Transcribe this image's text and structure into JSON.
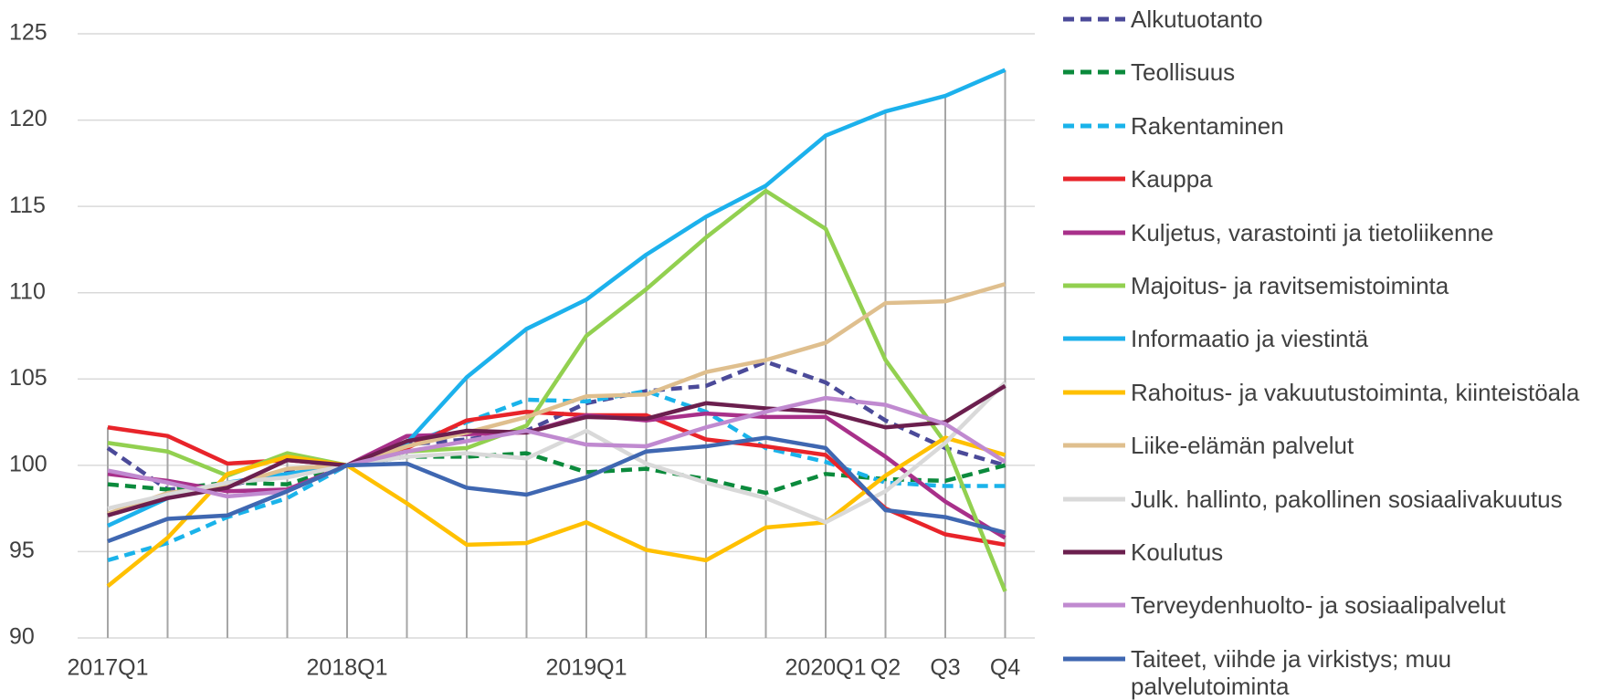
{
  "chart_data": {
    "type": "line",
    "categories": [
      "2017Q1",
      null,
      null,
      null,
      "2018Q1",
      null,
      null,
      null,
      "2019Q1",
      null,
      null,
      null,
      "2020Q1",
      "Q2",
      "Q3",
      "Q4"
    ],
    "ylim": [
      90,
      125
    ],
    "yticks": [
      90,
      95,
      100,
      105,
      110,
      115,
      120,
      125
    ],
    "grid": true,
    "drop_lines": true,
    "legend": "right",
    "series": [
      {
        "name": "Alkutuotanto",
        "color": "#4b4a99",
        "style": "dashed",
        "values": [
          101,
          98.6,
          98.8,
          99.6,
          100,
          101.2,
          101.5,
          102,
          103.6,
          104.3,
          104.6,
          106,
          104.8,
          102.6,
          101,
          100
        ]
      },
      {
        "name": "Teollisuus",
        "color": "#0b8a3c",
        "style": "dashed",
        "values": [
          98.9,
          98.6,
          99,
          98.9,
          100,
          100.5,
          100.5,
          100.7,
          99.6,
          99.8,
          99.2,
          98.4,
          99.5,
          99.2,
          99.1,
          100
        ]
      },
      {
        "name": "Rakentaminen",
        "color": "#1ab3ea",
        "style": "dashed",
        "values": [
          94.5,
          95.5,
          97,
          98.1,
          100,
          101.2,
          102.5,
          103.8,
          103.7,
          104.3,
          103.1,
          101,
          100.2,
          99,
          98.8,
          98.8
        ]
      },
      {
        "name": "Kauppa",
        "color": "#e8242a",
        "style": "solid",
        "values": [
          102.2,
          101.7,
          100.1,
          100.3,
          100,
          101,
          102.6,
          103.1,
          102.9,
          102.9,
          101.5,
          101.1,
          100.6,
          97.5,
          96,
          95.4
        ]
      },
      {
        "name": "Kuljetus, varastointi ja tietoliikenne",
        "color": "#a8308a",
        "style": "solid",
        "values": [
          99.5,
          99.1,
          98.5,
          98.6,
          100,
          101.7,
          101.8,
          101.9,
          102.9,
          102.6,
          103,
          102.8,
          102.8,
          100.5,
          97.9,
          95.8
        ]
      },
      {
        "name": "Majoitus- ja ravitsemistoiminta",
        "color": "#92d050",
        "style": "solid",
        "values": [
          101.3,
          100.8,
          99.4,
          100.7,
          100,
          100.8,
          101,
          102.3,
          107.5,
          110.2,
          113.2,
          115.9,
          113.7,
          106.1,
          101.3,
          92.7
        ]
      },
      {
        "name": "Informaatio ja viestintä",
        "color": "#1cb1ec",
        "style": "solid",
        "values": [
          96.5,
          98.1,
          99,
          99.5,
          100,
          101.3,
          105.1,
          107.9,
          109.6,
          112.2,
          114.4,
          116.2,
          119.1,
          120.5,
          121.4,
          122.9
        ]
      },
      {
        "name": "Rahoitus- ja vakuutustoiminta, kiinteistöala",
        "color": "#ffc000",
        "style": "solid",
        "values": [
          93,
          95.8,
          99.5,
          100.5,
          100,
          97.8,
          95.4,
          95.5,
          96.7,
          95.1,
          94.5,
          96.4,
          96.7,
          99.4,
          101.6,
          100.6
        ]
      },
      {
        "name": "Liike-elämän palvelut",
        "color": "#dfbf8e",
        "style": "solid",
        "values": [
          97.2,
          98.4,
          98.8,
          99.8,
          100,
          101.1,
          101.9,
          102.8,
          104,
          104.1,
          105.4,
          106.1,
          107.1,
          109.4,
          109.5,
          110.5
        ]
      },
      {
        "name": "Julk. hallinto, pakollinen sosiaalivakuutus",
        "color": "#d9d9d9",
        "style": "solid",
        "values": [
          97.5,
          98.3,
          99,
          99.3,
          100,
          100.5,
          100.7,
          100.4,
          102,
          100.1,
          99,
          98.1,
          96.7,
          98.5,
          101.3,
          104.8
        ]
      },
      {
        "name": "Koulutus",
        "color": "#6b1f4e",
        "style": "solid",
        "values": [
          97.1,
          98.1,
          98.7,
          100.3,
          100,
          101.4,
          102,
          101.9,
          102.8,
          102.7,
          103.6,
          103.3,
          103.1,
          102.2,
          102.5,
          104.6
        ]
      },
      {
        "name": "Terveydenhuolto- ja sosiaalipalvelut",
        "color": "#c08ad0",
        "style": "solid",
        "values": [
          99.7,
          99,
          98.2,
          98.5,
          100,
          100.8,
          101.4,
          102,
          101.2,
          101.1,
          102.2,
          103.1,
          103.9,
          103.5,
          102.4,
          100.2
        ]
      },
      {
        "name": "Taiteet, viihde ja virkistys; muu palvelutoiminta",
        "color": "#3f67b1",
        "style": "solid",
        "values": [
          95.6,
          96.9,
          97.1,
          98.5,
          100,
          100.1,
          98.7,
          98.3,
          99.3,
          100.8,
          101.1,
          101.6,
          101,
          97.4,
          97,
          96.1
        ]
      }
    ]
  }
}
